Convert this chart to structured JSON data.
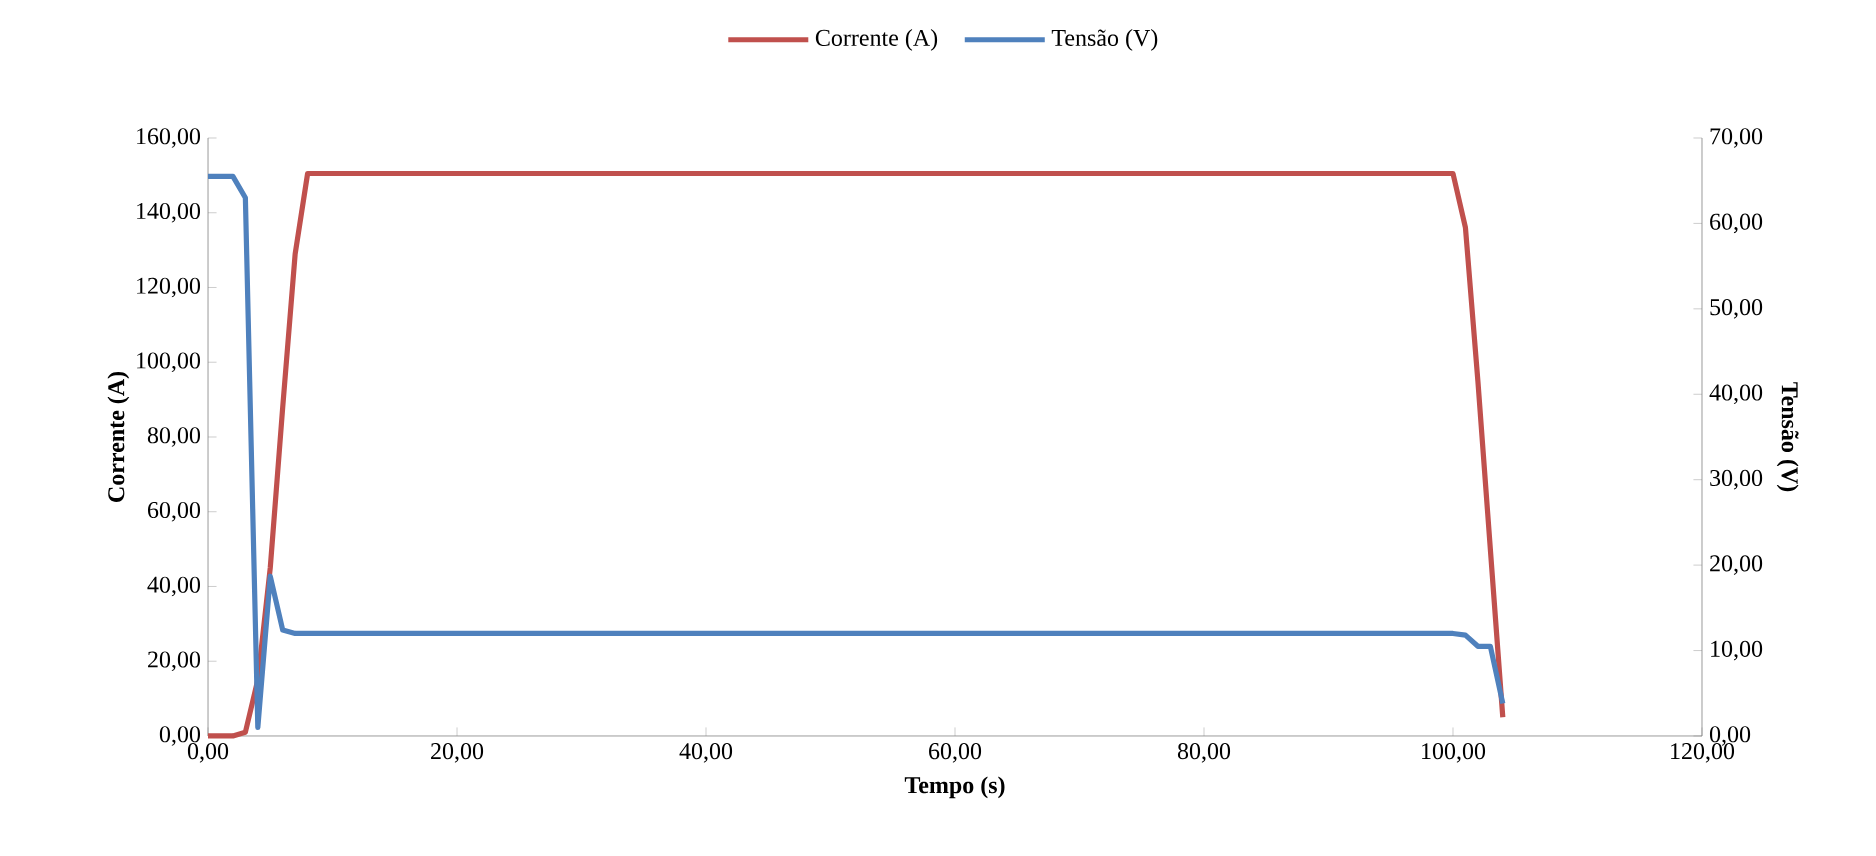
{
  "chart_data": {
    "type": "line",
    "xlabel": "Tempo (s)",
    "ylabel": "Corrente (A)",
    "y2label": "Tensão (V)",
    "legend": "top",
    "grid": false,
    "marker": "none",
    "line_style": "solid",
    "xlim": [
      0,
      120
    ],
    "xticks": [
      {
        "value": 0,
        "label": "0,00"
      },
      {
        "value": 20,
        "label": "20,00"
      },
      {
        "value": 40,
        "label": "40,00"
      },
      {
        "value": 60,
        "label": "60,00"
      },
      {
        "value": 80,
        "label": "80,00"
      },
      {
        "value": 100,
        "label": "100,00"
      },
      {
        "value": 120,
        "label": "120,00"
      }
    ],
    "ylim": [
      0,
      160
    ],
    "yticks": [
      {
        "value": 0,
        "label": "0,00"
      },
      {
        "value": 20,
        "label": "20,00"
      },
      {
        "value": 40,
        "label": "40,00"
      },
      {
        "value": 60,
        "label": "60,00"
      },
      {
        "value": 80,
        "label": "80,00"
      },
      {
        "value": 100,
        "label": "100,00"
      },
      {
        "value": 120,
        "label": "120,00"
      },
      {
        "value": 140,
        "label": "140,00"
      },
      {
        "value": 160,
        "label": "160,00"
      }
    ],
    "y2lim": [
      0,
      70
    ],
    "y2ticks": [
      {
        "value": 0,
        "label": "0,00"
      },
      {
        "value": 10,
        "label": "10,00"
      },
      {
        "value": 20,
        "label": "20,00"
      },
      {
        "value": 30,
        "label": "30,00"
      },
      {
        "value": 40,
        "label": "40,00"
      },
      {
        "value": 50,
        "label": "50,00"
      },
      {
        "value": 60,
        "label": "60,00"
      },
      {
        "value": 70,
        "label": "70,00"
      }
    ],
    "series": [
      {
        "name": "Corrente (A)",
        "color": "#c0504d",
        "x": [
          0,
          1,
          2,
          3,
          4,
          5,
          6,
          7,
          8,
          10,
          15,
          20,
          30,
          40,
          60,
          80,
          100,
          101,
          102,
          103,
          104
        ],
        "values": [
          0,
          0,
          0,
          1,
          15,
          45,
          88,
          129,
          150.5,
          150.5,
          150.5,
          150.5,
          150.5,
          150.5,
          150.5,
          150.5,
          150.5,
          136,
          95,
          50,
          5
        ]
      },
      {
        "name": "Tensão (V)",
        "color": "#4f81bd",
        "axis": "y2",
        "x": [
          0,
          1,
          2,
          3,
          4,
          5,
          6,
          7,
          8,
          10,
          20,
          30,
          40,
          50,
          60,
          70,
          80,
          90,
          100,
          101,
          102,
          103,
          104
        ],
        "values": [
          65.5,
          65.5,
          65.5,
          63,
          1,
          18.7,
          12.4,
          12,
          12,
          12,
          12,
          12,
          12,
          12,
          12,
          12,
          12,
          12,
          12,
          11.8,
          10.5,
          10.5,
          3.8
        ]
      }
    ]
  }
}
